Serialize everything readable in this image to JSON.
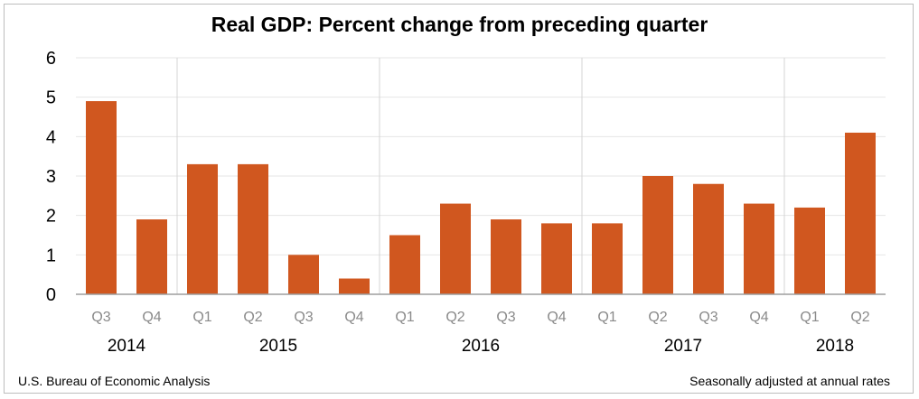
{
  "title": "Real GDP:  Percent change from preceding quarter",
  "footer": {
    "source": "U.S. Bureau of Economic Analysis",
    "note": "Seasonally adjusted at annual rates"
  },
  "colors": {
    "bar": "#d0571f",
    "grid": "#e6e6e6",
    "divider": "#d4d4d4",
    "axis": "#9e9e9e",
    "quarter_label": "#8a8a8a"
  },
  "chart_data": {
    "type": "bar",
    "categories": [
      "Q3",
      "Q4",
      "Q1",
      "Q2",
      "Q3",
      "Q4",
      "Q1",
      "Q2",
      "Q3",
      "Q4",
      "Q1",
      "Q2",
      "Q3",
      "Q4",
      "Q1",
      "Q2"
    ],
    "values": [
      4.9,
      1.9,
      3.3,
      3.3,
      1.0,
      0.4,
      1.5,
      2.3,
      1.9,
      1.8,
      1.8,
      3.0,
      2.8,
      2.3,
      2.2,
      4.1
    ],
    "year_groups": [
      {
        "label": "2014",
        "start": 0,
        "count": 2
      },
      {
        "label": "2015",
        "start": 2,
        "count": 4
      },
      {
        "label": "2016",
        "start": 6,
        "count": 4
      },
      {
        "label": "2017",
        "start": 10,
        "count": 4
      },
      {
        "label": "2018",
        "start": 14,
        "count": 2
      }
    ],
    "ylim": [
      0,
      6
    ],
    "yticks": [
      "0",
      "1",
      "2",
      "3",
      "4",
      "5",
      "6"
    ],
    "grid": true
  }
}
